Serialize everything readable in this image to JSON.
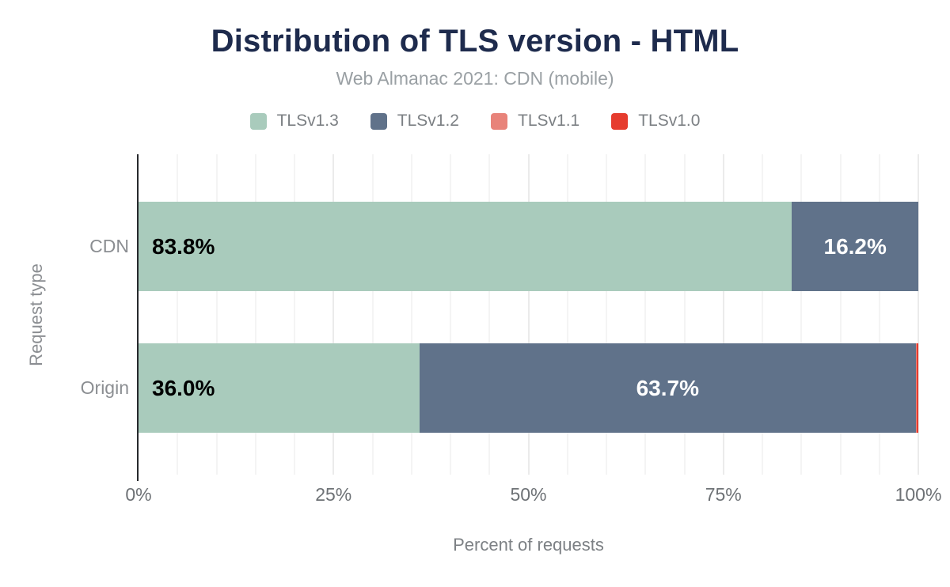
{
  "chart_data": {
    "type": "bar",
    "orientation": "horizontal",
    "stacked": true,
    "title": "Distribution of TLS version - HTML",
    "subtitle": "Web Almanac 2021: CDN (mobile)",
    "categories": [
      "CDN",
      "Origin"
    ],
    "series": [
      {
        "name": "TLSv1.3",
        "color": "#a9cbbc",
        "values": [
          83.8,
          36.0
        ],
        "labels": [
          "83.8%",
          "36.0%"
        ]
      },
      {
        "name": "TLSv1.2",
        "color": "#60728a",
        "values": [
          16.2,
          63.7
        ],
        "labels": [
          "16.2%",
          "63.7%"
        ]
      },
      {
        "name": "TLSv1.1",
        "color": "#e8837a",
        "values": [
          0,
          0.1
        ],
        "labels": [
          "",
          ""
        ]
      },
      {
        "name": "TLSv1.0",
        "color": "#e63c2e",
        "values": [
          0,
          0.2
        ],
        "labels": [
          "",
          ""
        ]
      }
    ],
    "xlabel": "Percent of requests",
    "ylabel": "Request type",
    "xlim": [
      0,
      100
    ],
    "x_ticks": [
      {
        "label": "0%",
        "value": 0
      },
      {
        "label": "25%",
        "value": 25
      },
      {
        "label": "50%",
        "value": 50
      },
      {
        "label": "75%",
        "value": 75
      },
      {
        "label": "100%",
        "value": 100
      }
    ],
    "grid": {
      "on": true,
      "minor_step": 5,
      "major_step": 25
    },
    "legend_position": "top",
    "colors": {
      "title": "#1e2b4d",
      "subtitle_text": "#9aa0a4",
      "axis_line": "#27292d",
      "grid_minor": "#f4f4f4",
      "grid_major": "#ebebeb",
      "bar_label_on_light": "#000000",
      "bar_label_on_dark": "#ffffff"
    }
  }
}
